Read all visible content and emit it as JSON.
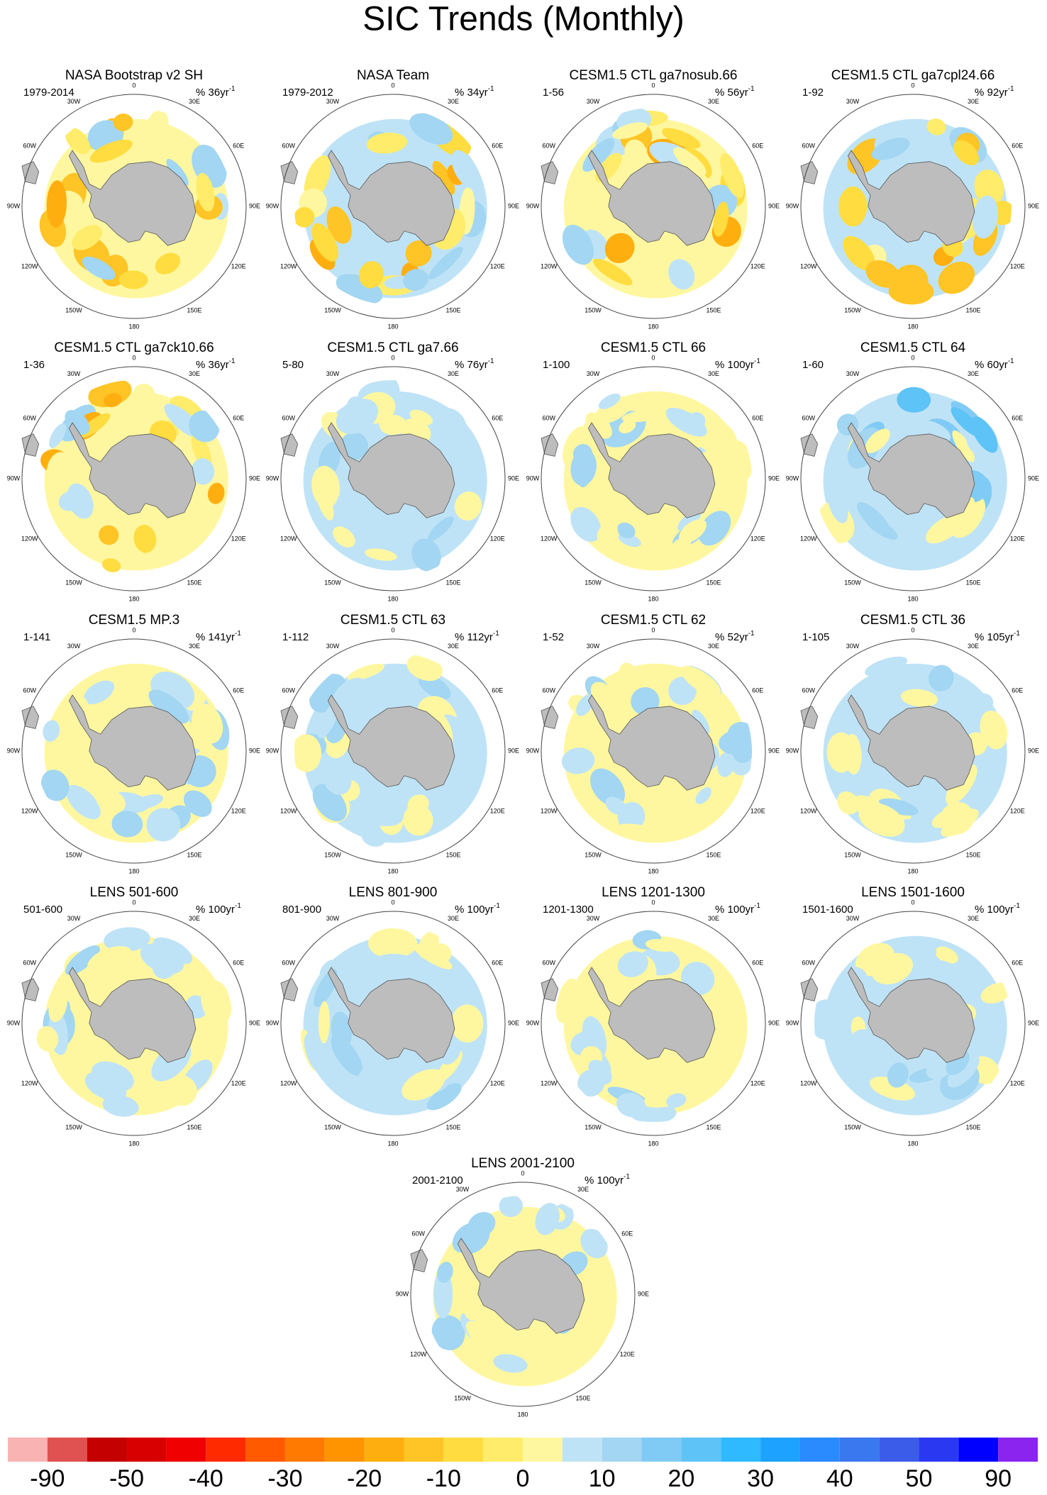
{
  "title": "SIC Trends (Monthly)",
  "longitude_labels": [
    "0",
    "30E",
    "60E",
    "90E",
    "120E",
    "150E",
    "180",
    "150W",
    "120W",
    "90W",
    "60W",
    "30W"
  ],
  "panels": [
    {
      "title": "NASA Bootstrap v2 SH",
      "period": "1979-2014",
      "trend": "% 36yr",
      "exponent": "-1"
    },
    {
      "title": "NASA Team",
      "period": "1979-2012",
      "trend": "% 34yr",
      "exponent": "-1"
    },
    {
      "title": "CESM1.5 CTL ga7nosub.66",
      "period": "1-56",
      "trend": "% 56yr",
      "exponent": "-1"
    },
    {
      "title": "CESM1.5 CTL ga7cpl24.66",
      "period": "1-92",
      "trend": "% 92yr",
      "exponent": "-1"
    },
    {
      "title": "CESM1.5 CTL ga7ck10.66",
      "period": "1-36",
      "trend": "% 36yr",
      "exponent": "-1"
    },
    {
      "title": "CESM1.5 CTL ga7.66",
      "period": "5-80",
      "trend": "% 76yr",
      "exponent": "-1"
    },
    {
      "title": "CESM1.5 CTL 66",
      "period": "1-100",
      "trend": "% 100yr",
      "exponent": "-1"
    },
    {
      "title": "CESM1.5 CTL 64",
      "period": "1-60",
      "trend": "% 60yr",
      "exponent": "-1"
    },
    {
      "title": "CESM1.5 MP.3",
      "period": "1-141",
      "trend": "% 141yr",
      "exponent": "-1"
    },
    {
      "title": "CESM1.5 CTL 63",
      "period": "1-112",
      "trend": "% 112yr",
      "exponent": "-1"
    },
    {
      "title": "CESM1.5 CTL 62",
      "period": "1-52",
      "trend": "% 52yr",
      "exponent": "-1"
    },
    {
      "title": "CESM1.5 CTL 36",
      "period": "1-105",
      "trend": "% 105yr",
      "exponent": "-1"
    },
    {
      "title": "LENS 501-600",
      "period": "501-600",
      "trend": "% 100yr",
      "exponent": "-1"
    },
    {
      "title": "LENS 801-900",
      "period": "801-900",
      "trend": "% 100yr",
      "exponent": "-1"
    },
    {
      "title": "LENS 1201-1300",
      "period": "1201-1300",
      "trend": "% 100yr",
      "exponent": "-1"
    },
    {
      "title": "LENS 1501-1600",
      "period": "1501-1600",
      "trend": "% 100yr",
      "exponent": "-1"
    },
    {
      "title": "LENS 2001-2100",
      "period": "2001-2100",
      "trend": "% 100yr",
      "exponent": "-1"
    }
  ],
  "colorbar": {
    "colors": [
      "#f9b3b3",
      "#e05252",
      "#c40000",
      "#d80000",
      "#f00000",
      "#ff2a00",
      "#ff5a00",
      "#ff7a00",
      "#ff9400",
      "#ffae10",
      "#ffc425",
      "#ffdc40",
      "#ffec6a",
      "#fff7a0",
      "#bfe3f6",
      "#a2d6f2",
      "#80cbf5",
      "#5ec3f6",
      "#2fbaff",
      "#1ea2ff",
      "#2a8aff",
      "#3a78f0",
      "#3a5ce8",
      "#2a38f2",
      "#0000ff",
      "#8a24ee"
    ],
    "labels": [
      -90,
      -50,
      -40,
      -30,
      -20,
      -10,
      0,
      10,
      20,
      30,
      40,
      50,
      90
    ]
  }
}
